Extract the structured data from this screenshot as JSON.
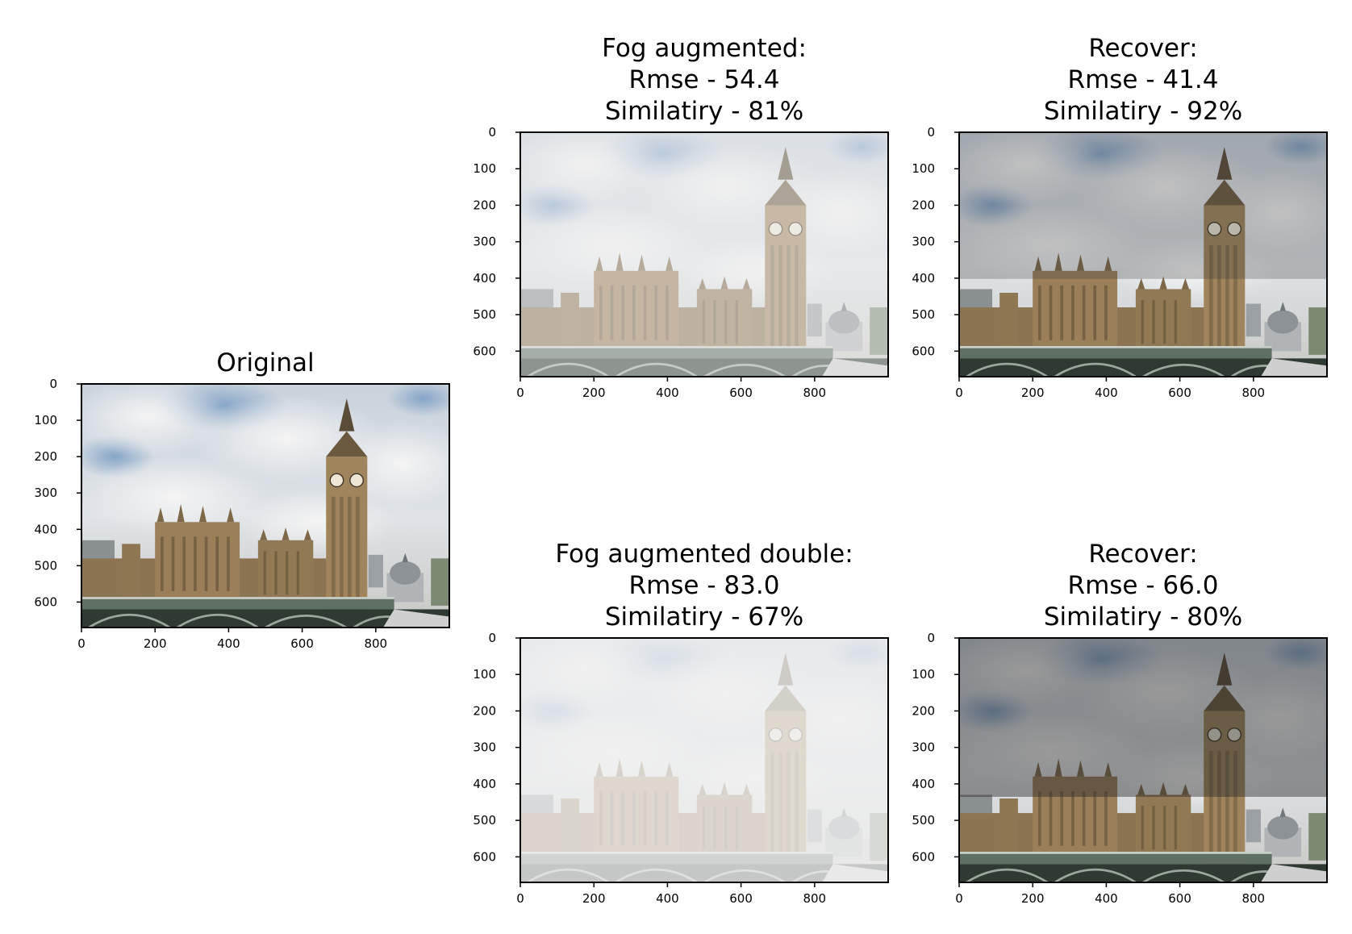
{
  "figure": {
    "panels": [
      {
        "id": "original",
        "title_lines": [
          "Original"
        ],
        "filter": "none"
      },
      {
        "id": "fog",
        "title_lines": [
          "Fog augmented:",
          "Rmse -  54.4",
          "Similatiry - 81%"
        ],
        "filter": "fog1"
      },
      {
        "id": "recover1",
        "title_lines": [
          "Recover:",
          "Rmse -  41.4",
          "Similatiry - 92%"
        ],
        "filter": "dark1"
      },
      {
        "id": "fog2",
        "title_lines": [
          "Fog augmented double:",
          "Rmse -  83.0",
          "Similatiry - 67%"
        ],
        "filter": "fog2"
      },
      {
        "id": "recover2",
        "title_lines": [
          "Recover:",
          "Rmse -  66.0",
          "Similatiry - 80%"
        ],
        "filter": "dark2"
      }
    ]
  },
  "chart_data": [
    {
      "type": "image",
      "title": "Original",
      "xlim": [
        0,
        1000
      ],
      "ylim": [
        670,
        0
      ],
      "xticks": [
        0,
        200,
        400,
        600,
        800
      ],
      "yticks": [
        0,
        100,
        200,
        300,
        400,
        500,
        600
      ]
    },
    {
      "type": "image",
      "title": "Fog augmented:\nRmse -  54.4\nSimilatiry - 81%",
      "rmse": 54.4,
      "similarity_percent": 81,
      "xlim": [
        0,
        1000
      ],
      "ylim": [
        670,
        0
      ],
      "xticks": [
        0,
        200,
        400,
        600,
        800
      ],
      "yticks": [
        0,
        100,
        200,
        300,
        400,
        500,
        600
      ]
    },
    {
      "type": "image",
      "title": "Recover:\nRmse -  41.4\nSimilatiry - 92%",
      "rmse": 41.4,
      "similarity_percent": 92,
      "xlim": [
        0,
        1000
      ],
      "ylim": [
        670,
        0
      ],
      "xticks": [
        0,
        200,
        400,
        600,
        800
      ],
      "yticks": [
        0,
        100,
        200,
        300,
        400,
        500,
        600
      ]
    },
    {
      "type": "image",
      "title": "Fog augmented double:\nRmse -  83.0\nSimilatiry - 67%",
      "rmse": 83.0,
      "similarity_percent": 67,
      "xlim": [
        0,
        1000
      ],
      "ylim": [
        670,
        0
      ],
      "xticks": [
        0,
        200,
        400,
        600,
        800
      ],
      "yticks": [
        0,
        100,
        200,
        300,
        400,
        500,
        600
      ]
    },
    {
      "type": "image",
      "title": "Recover:\nRmse -  66.0\nSimilatiry - 80%",
      "rmse": 66.0,
      "similarity_percent": 80,
      "xlim": [
        0,
        1000
      ],
      "ylim": [
        670,
        0
      ],
      "xticks": [
        0,
        200,
        400,
        600,
        800
      ],
      "yticks": [
        0,
        100,
        200,
        300,
        400,
        500,
        600
      ]
    }
  ]
}
